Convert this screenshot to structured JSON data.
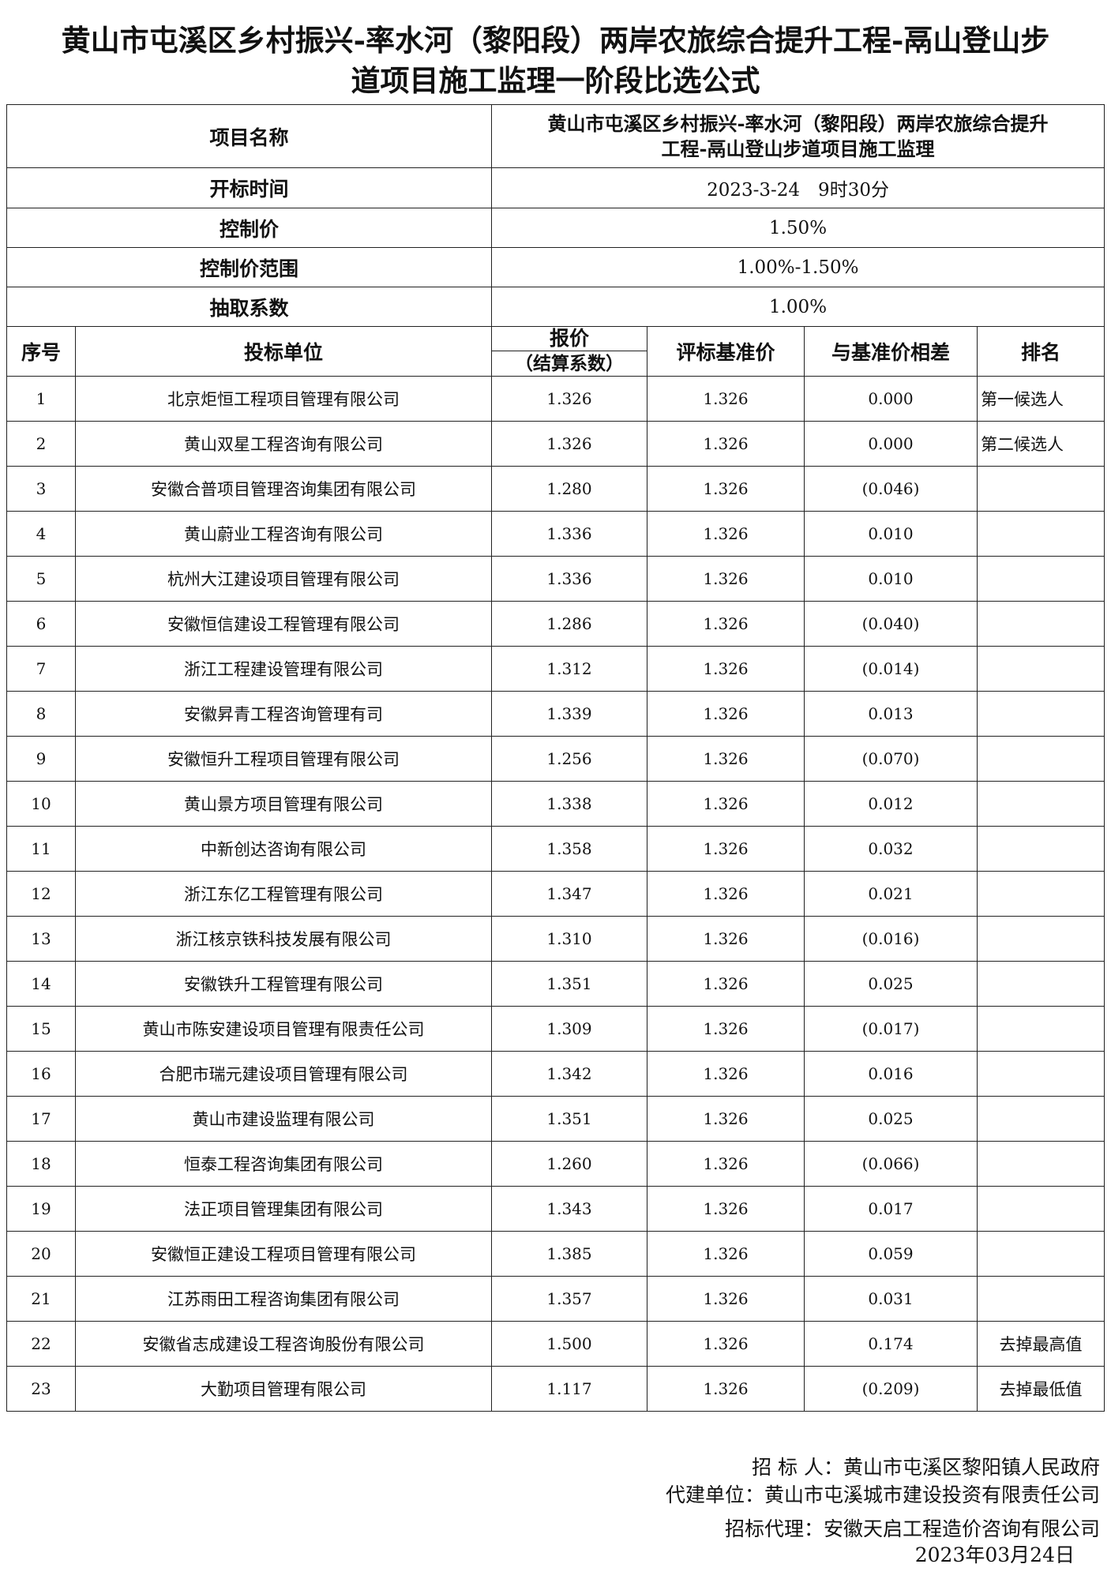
{
  "title": {
    "line1": "黄山市屯溪区乡村振兴-率水河（黎阳段）两岸农旅综合提升工程-鬲山登山步",
    "line2": "道项目施工监理一阶段比选公式"
  },
  "info": {
    "project_name_label": "项目名称",
    "project_name_line1": "黄山市屯溪区乡村振兴-率水河（黎阳段）两岸农旅综合提升",
    "project_name_line2": "工程-鬲山登山步道项目施工监理",
    "open_time_label": "开标时间",
    "open_time": "2023-3-24　9时30分",
    "control_price_label": "控制价",
    "control_price": "1.50%",
    "control_range_label": "控制价范围",
    "control_range": "1.00%-1.50%",
    "coefficient_label": "抽取系数",
    "coefficient": "1.00%"
  },
  "headers": {
    "no": "序号",
    "bidder": "投标单位",
    "quote": "报价",
    "quote_sub": "（结算系数）",
    "benchmark": "评标基准价",
    "diff": "与基准价相差",
    "rank": "排名"
  },
  "rows": [
    [
      "1",
      "北京炬恒工程项目管理有限公司",
      "1.326",
      "1.326",
      "0.000",
      "第一候选人"
    ],
    [
      "2",
      "黄山双星工程咨询有限公司",
      "1.326",
      "1.326",
      "0.000",
      "第二候选人"
    ],
    [
      "3",
      "安徽合普项目管理咨询集团有限公司",
      "1.280",
      "1.326",
      "(0.046)",
      ""
    ],
    [
      "4",
      "黄山蔚业工程咨询有限公司",
      "1.336",
      "1.326",
      "0.010",
      ""
    ],
    [
      "5",
      "杭州大江建设项目管理有限公司",
      "1.336",
      "1.326",
      "0.010",
      ""
    ],
    [
      "6",
      "安徽恒信建设工程管理有限公司",
      "1.286",
      "1.326",
      "(0.040)",
      ""
    ],
    [
      "7",
      "浙江工程建设管理有限公司",
      "1.312",
      "1.326",
      "(0.014)",
      ""
    ],
    [
      "8",
      "安徽昇青工程咨询管理有司",
      "1.339",
      "1.326",
      "0.013",
      ""
    ],
    [
      "9",
      "安徽恒升工程项目管理有限公司",
      "1.256",
      "1.326",
      "(0.070)",
      ""
    ],
    [
      "10",
      "黄山景方项目管理有限公司",
      "1.338",
      "1.326",
      "0.012",
      ""
    ],
    [
      "11",
      "中新创达咨询有限公司",
      "1.358",
      "1.326",
      "0.032",
      ""
    ],
    [
      "12",
      "浙江东亿工程管理有限公司",
      "1.347",
      "1.326",
      "0.021",
      ""
    ],
    [
      "13",
      "浙江核京铁科技发展有限公司",
      "1.310",
      "1.326",
      "(0.016)",
      ""
    ],
    [
      "14",
      "安徽铁升工程管理有限公司",
      "1.351",
      "1.326",
      "0.025",
      ""
    ],
    [
      "15",
      "黄山市陈安建设项目管理有限责任公司",
      "1.309",
      "1.326",
      "(0.017)",
      ""
    ],
    [
      "16",
      "合肥市瑞元建设项目管理有限公司",
      "1.342",
      "1.326",
      "0.016",
      ""
    ],
    [
      "17",
      "黄山市建设监理有限公司",
      "1.351",
      "1.326",
      "0.025",
      ""
    ],
    [
      "18",
      "恒泰工程咨询集团有限公司",
      "1.260",
      "1.326",
      "(0.066)",
      ""
    ],
    [
      "19",
      "法正项目管理集团有限公司",
      "1.343",
      "1.326",
      "0.017",
      ""
    ],
    [
      "20",
      "安徽恒正建设工程项目管理有限公司",
      "1.385",
      "1.326",
      "0.059",
      ""
    ],
    [
      "21",
      "江苏雨田工程咨询集团有限公司",
      "1.357",
      "1.326",
      "0.031",
      ""
    ],
    [
      "22",
      "安徽省志成建设工程咨询股份有限公司",
      "1.500",
      "1.326",
      "0.174",
      "去掉最高值"
    ],
    [
      "23",
      "大勤项目管理有限公司",
      "1.117",
      "1.326",
      "(0.209)",
      "去掉最低值"
    ]
  ],
  "footer": {
    "tenderer": "招 标 人：黄山市屯溪区黎阳镇人民政府",
    "agent_builder": "代建单位：黄山市屯溪城市建设投资有限责任公司",
    "tender_agent": "招标代理：安徽天启工程造价咨询有限公司",
    "date": "2023年03月24日"
  }
}
